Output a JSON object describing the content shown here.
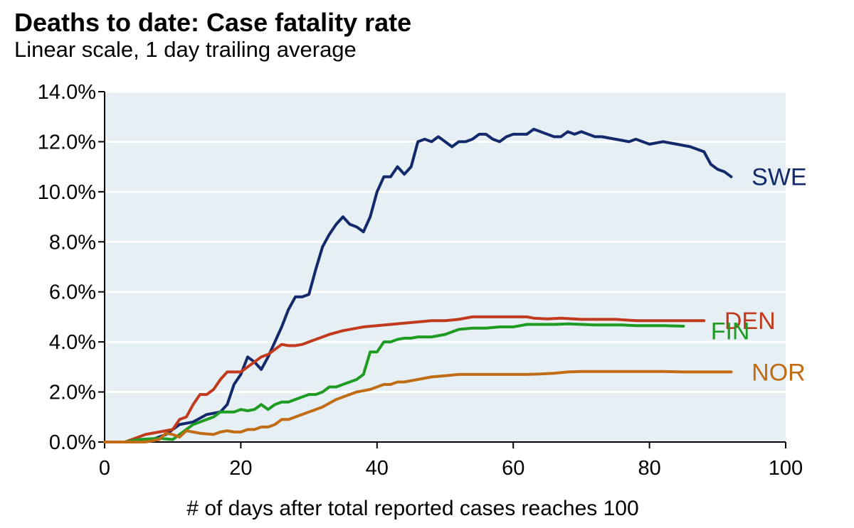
{
  "chart_data": {
    "type": "line",
    "title": "Deaths to date: Case fatality rate",
    "subtitle": "Linear scale, 1 day trailing average",
    "xlabel": "# of days after total reported cases reaches 100",
    "ylabel": "",
    "xlim": [
      0,
      100
    ],
    "ylim": [
      0,
      14
    ],
    "x_ticks": [
      0,
      20,
      40,
      60,
      80,
      100
    ],
    "x_tick_labels": [
      "0",
      "20",
      "40",
      "60",
      "80",
      "100"
    ],
    "y_ticks": [
      0,
      2,
      4,
      6,
      8,
      10,
      12,
      14
    ],
    "y_tick_labels": [
      "0.0%",
      "2.0%",
      "4.0%",
      "6.0%",
      "8.0%",
      "10.0%",
      "12.0%",
      "14.0%"
    ],
    "grid": "horizontal",
    "plot_background": "#e6eff3",
    "series": [
      {
        "name": "SWE",
        "color": "#12296b",
        "label_at": [
          95,
          10.6
        ],
        "points": [
          [
            0,
            0
          ],
          [
            3,
            0
          ],
          [
            5,
            0.1
          ],
          [
            7,
            0.1
          ],
          [
            9,
            0.3
          ],
          [
            11,
            0.7
          ],
          [
            13,
            0.8
          ],
          [
            15,
            1.1
          ],
          [
            17,
            1.2
          ],
          [
            18,
            1.5
          ],
          [
            19,
            2.3
          ],
          [
            20,
            2.7
          ],
          [
            21,
            3.4
          ],
          [
            22,
            3.2
          ],
          [
            23,
            2.9
          ],
          [
            24,
            3.4
          ],
          [
            25,
            4.0
          ],
          [
            26,
            4.6
          ],
          [
            27,
            5.3
          ],
          [
            28,
            5.8
          ],
          [
            29,
            5.8
          ],
          [
            30,
            5.9
          ],
          [
            31,
            6.9
          ],
          [
            32,
            7.8
          ],
          [
            33,
            8.3
          ],
          [
            34,
            8.7
          ],
          [
            35,
            9.0
          ],
          [
            36,
            8.7
          ],
          [
            37,
            8.6
          ],
          [
            38,
            8.4
          ],
          [
            39,
            9.0
          ],
          [
            40,
            10.0
          ],
          [
            41,
            10.6
          ],
          [
            42,
            10.6
          ],
          [
            43,
            11.0
          ],
          [
            44,
            10.7
          ],
          [
            45,
            11.0
          ],
          [
            46,
            12.0
          ],
          [
            47,
            12.1
          ],
          [
            48,
            12.0
          ],
          [
            49,
            12.2
          ],
          [
            50,
            12.0
          ],
          [
            51,
            11.8
          ],
          [
            52,
            12.0
          ],
          [
            53,
            12.0
          ],
          [
            54,
            12.1
          ],
          [
            55,
            12.3
          ],
          [
            56,
            12.3
          ],
          [
            57,
            12.1
          ],
          [
            58,
            12.0
          ],
          [
            59,
            12.2
          ],
          [
            60,
            12.3
          ],
          [
            61,
            12.3
          ],
          [
            62,
            12.3
          ],
          [
            63,
            12.5
          ],
          [
            64,
            12.4
          ],
          [
            65,
            12.3
          ],
          [
            66,
            12.2
          ],
          [
            67,
            12.2
          ],
          [
            68,
            12.4
          ],
          [
            69,
            12.3
          ],
          [
            70,
            12.4
          ],
          [
            71,
            12.3
          ],
          [
            72,
            12.2
          ],
          [
            73,
            12.2
          ],
          [
            75,
            12.1
          ],
          [
            77,
            12.0
          ],
          [
            78,
            12.1
          ],
          [
            80,
            11.9
          ],
          [
            82,
            12.0
          ],
          [
            84,
            11.9
          ],
          [
            86,
            11.8
          ],
          [
            87,
            11.7
          ],
          [
            88,
            11.6
          ],
          [
            89,
            11.1
          ],
          [
            90,
            10.9
          ],
          [
            91,
            10.8
          ],
          [
            92,
            10.6
          ]
        ]
      },
      {
        "name": "DEN",
        "color": "#c23a1e",
        "label_at": [
          91,
          4.85
        ],
        "points": [
          [
            0,
            0
          ],
          [
            3,
            0
          ],
          [
            4,
            0.1
          ],
          [
            6,
            0.3
          ],
          [
            8,
            0.4
          ],
          [
            10,
            0.5
          ],
          [
            11,
            0.9
          ],
          [
            12,
            1.0
          ],
          [
            13,
            1.5
          ],
          [
            14,
            1.9
          ],
          [
            15,
            1.9
          ],
          [
            16,
            2.1
          ],
          [
            17,
            2.5
          ],
          [
            18,
            2.8
          ],
          [
            19,
            2.8
          ],
          [
            20,
            2.8
          ],
          [
            21,
            3.0
          ],
          [
            22,
            3.2
          ],
          [
            23,
            3.4
          ],
          [
            24,
            3.5
          ],
          [
            25,
            3.7
          ],
          [
            26,
            3.9
          ],
          [
            27,
            3.85
          ],
          [
            28,
            3.85
          ],
          [
            29,
            3.9
          ],
          [
            30,
            4.0
          ],
          [
            31,
            4.1
          ],
          [
            33,
            4.3
          ],
          [
            35,
            4.45
          ],
          [
            37,
            4.55
          ],
          [
            38,
            4.6
          ],
          [
            40,
            4.65
          ],
          [
            42,
            4.7
          ],
          [
            44,
            4.75
          ],
          [
            46,
            4.8
          ],
          [
            48,
            4.85
          ],
          [
            50,
            4.85
          ],
          [
            52,
            4.9
          ],
          [
            54,
            5.0
          ],
          [
            56,
            5.0
          ],
          [
            58,
            5.0
          ],
          [
            60,
            5.0
          ],
          [
            62,
            5.0
          ],
          [
            63,
            4.95
          ],
          [
            65,
            4.92
          ],
          [
            67,
            4.95
          ],
          [
            70,
            4.9
          ],
          [
            72,
            4.9
          ],
          [
            75,
            4.9
          ],
          [
            78,
            4.85
          ],
          [
            80,
            4.85
          ],
          [
            82,
            4.85
          ],
          [
            85,
            4.85
          ],
          [
            88,
            4.85
          ]
        ]
      },
      {
        "name": "FIN",
        "color": "#1e9b23",
        "label_at": [
          89,
          4.45
        ],
        "points": [
          [
            0,
            0
          ],
          [
            3,
            0
          ],
          [
            5,
            0.1
          ],
          [
            8,
            0.15
          ],
          [
            10,
            0.1
          ],
          [
            11,
            0.3
          ],
          [
            12,
            0.5
          ],
          [
            13,
            0.7
          ],
          [
            15,
            0.9
          ],
          [
            16,
            1.0
          ],
          [
            17,
            1.2
          ],
          [
            18,
            1.2
          ],
          [
            19,
            1.2
          ],
          [
            20,
            1.3
          ],
          [
            21,
            1.25
          ],
          [
            22,
            1.3
          ],
          [
            23,
            1.5
          ],
          [
            24,
            1.3
          ],
          [
            25,
            1.5
          ],
          [
            26,
            1.6
          ],
          [
            27,
            1.6
          ],
          [
            28,
            1.7
          ],
          [
            29,
            1.8
          ],
          [
            30,
            1.9
          ],
          [
            31,
            1.9
          ],
          [
            32,
            2.0
          ],
          [
            33,
            2.2
          ],
          [
            34,
            2.2
          ],
          [
            35,
            2.3
          ],
          [
            36,
            2.4
          ],
          [
            37,
            2.5
          ],
          [
            38,
            2.7
          ],
          [
            39,
            3.6
          ],
          [
            40,
            3.6
          ],
          [
            41,
            4.0
          ],
          [
            42,
            4.0
          ],
          [
            43,
            4.1
          ],
          [
            44,
            4.15
          ],
          [
            45,
            4.15
          ],
          [
            46,
            4.2
          ],
          [
            48,
            4.2
          ],
          [
            50,
            4.3
          ],
          [
            52,
            4.5
          ],
          [
            54,
            4.55
          ],
          [
            56,
            4.55
          ],
          [
            58,
            4.6
          ],
          [
            60,
            4.6
          ],
          [
            61,
            4.65
          ],
          [
            62,
            4.7
          ],
          [
            64,
            4.7
          ],
          [
            66,
            4.7
          ],
          [
            68,
            4.72
          ],
          [
            70,
            4.7
          ],
          [
            72,
            4.68
          ],
          [
            74,
            4.68
          ],
          [
            76,
            4.68
          ],
          [
            78,
            4.65
          ],
          [
            80,
            4.65
          ],
          [
            82,
            4.65
          ],
          [
            85,
            4.63
          ]
        ]
      },
      {
        "name": "NOR",
        "color": "#c06c14",
        "label_at": [
          95,
          2.8
        ],
        "points": [
          [
            0,
            0
          ],
          [
            6,
            0
          ],
          [
            8,
            0.1
          ],
          [
            9,
            0.35
          ],
          [
            10,
            0.3
          ],
          [
            11,
            0.2
          ],
          [
            12,
            0.45
          ],
          [
            13,
            0.4
          ],
          [
            14,
            0.35
          ],
          [
            16,
            0.3
          ],
          [
            17,
            0.4
          ],
          [
            18,
            0.45
          ],
          [
            19,
            0.4
          ],
          [
            20,
            0.4
          ],
          [
            21,
            0.5
          ],
          [
            22,
            0.5
          ],
          [
            23,
            0.6
          ],
          [
            24,
            0.6
          ],
          [
            25,
            0.7
          ],
          [
            26,
            0.9
          ],
          [
            27,
            0.9
          ],
          [
            28,
            1.0
          ],
          [
            29,
            1.1
          ],
          [
            30,
            1.2
          ],
          [
            31,
            1.3
          ],
          [
            32,
            1.4
          ],
          [
            33,
            1.55
          ],
          [
            34,
            1.7
          ],
          [
            35,
            1.8
          ],
          [
            36,
            1.9
          ],
          [
            37,
            2.0
          ],
          [
            38,
            2.05
          ],
          [
            39,
            2.1
          ],
          [
            40,
            2.2
          ],
          [
            41,
            2.3
          ],
          [
            42,
            2.3
          ],
          [
            43,
            2.4
          ],
          [
            44,
            2.4
          ],
          [
            45,
            2.45
          ],
          [
            46,
            2.5
          ],
          [
            48,
            2.6
          ],
          [
            50,
            2.65
          ],
          [
            52,
            2.7
          ],
          [
            55,
            2.7
          ],
          [
            58,
            2.7
          ],
          [
            60,
            2.7
          ],
          [
            62,
            2.7
          ],
          [
            64,
            2.72
          ],
          [
            66,
            2.75
          ],
          [
            68,
            2.8
          ],
          [
            70,
            2.82
          ],
          [
            72,
            2.82
          ],
          [
            75,
            2.82
          ],
          [
            78,
            2.82
          ],
          [
            80,
            2.82
          ],
          [
            82,
            2.82
          ],
          [
            85,
            2.8
          ],
          [
            88,
            2.8
          ],
          [
            92,
            2.8
          ]
        ]
      }
    ]
  }
}
